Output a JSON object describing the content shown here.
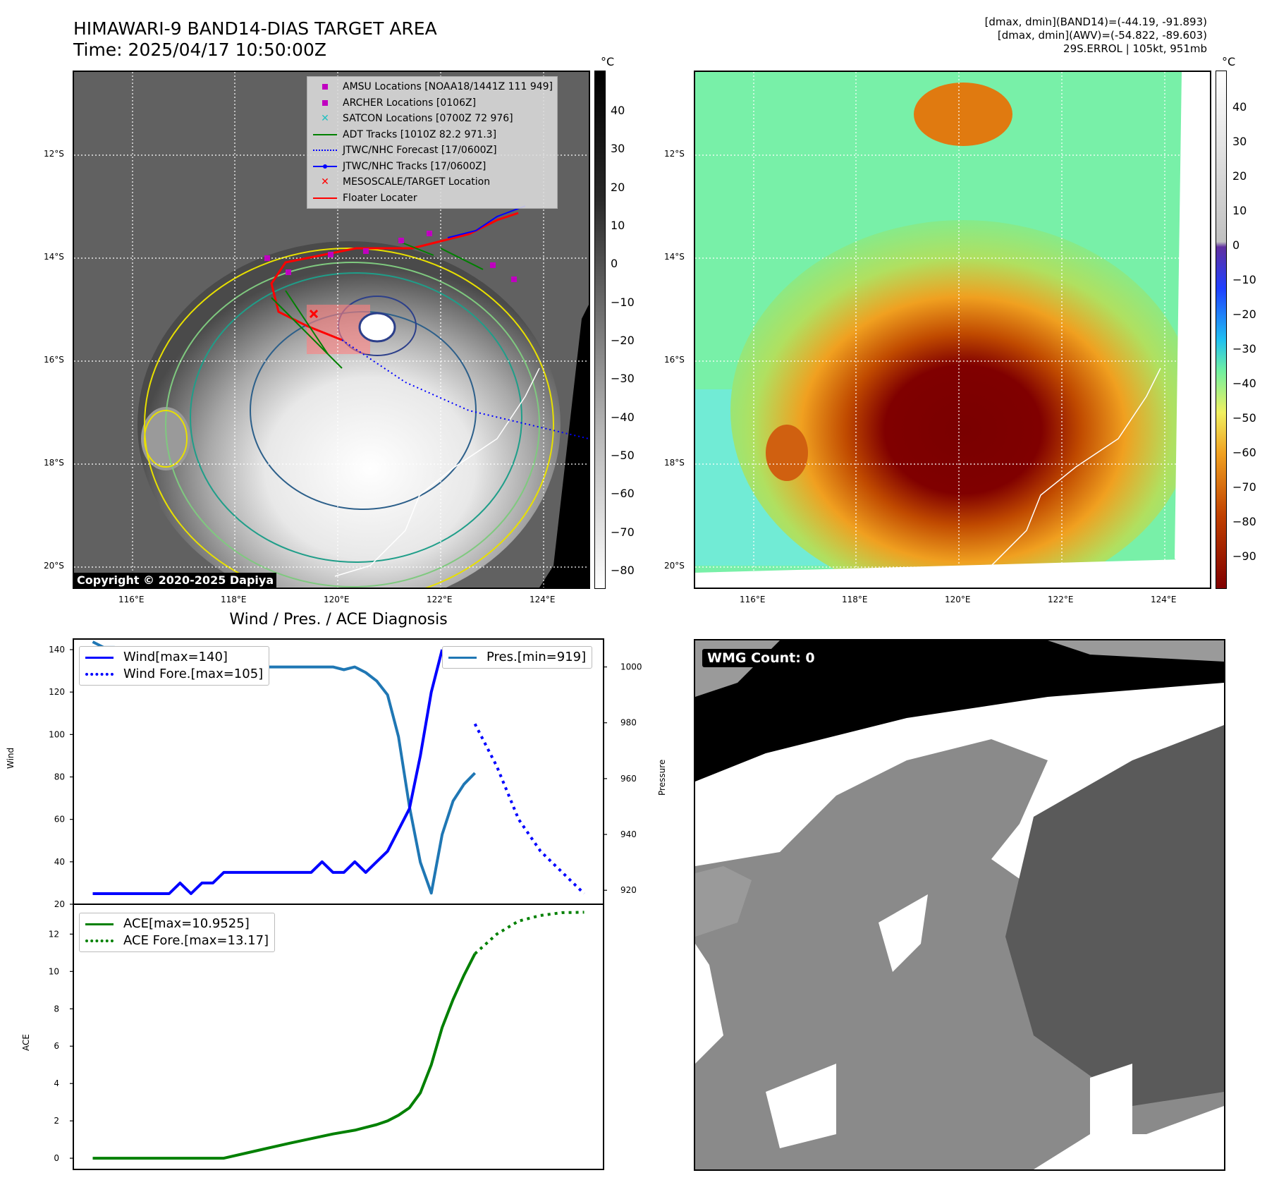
{
  "header": {
    "title_line1": "HIMAWARI-9 BAND14-DIAS TARGET AREA",
    "title_line2": "Time: 2025/04/17 10:50:00Z",
    "info_line1": "[dmax, dmin](BAND14)=(-44.19, -91.893)",
    "info_line2": "[dmax, dmin](AWV)=(-54.822, -89.603)",
    "info_line3": "29S.ERROL | 105kt, 951mb"
  },
  "map": {
    "lat_labels": [
      "12°S",
      "14°S",
      "16°S",
      "18°S",
      "20°S"
    ],
    "lon_labels": [
      "116°E",
      "118°E",
      "120°E",
      "122°E",
      "124°E"
    ],
    "copyright": "Copyright © 2020-2025 Dapiya",
    "legend": [
      {
        "label": "AMSU Locations [NOAA18/1441Z 111 949]",
        "symbol": "square",
        "color": "#c000c0"
      },
      {
        "label": "ARCHER Locations [0106Z]",
        "symbol": "square",
        "color": "#c000c0"
      },
      {
        "label": "SATCON Locations [0700Z 72 976]",
        "symbol": "x",
        "color": "#20c0c0"
      },
      {
        "label": "ADT Tracks [1010Z 82.2 971.3]",
        "symbol": "line",
        "color": "#008000"
      },
      {
        "label": "JTWC/NHC Forecast [17/0600Z]",
        "symbol": "dotted",
        "color": "#0000ff"
      },
      {
        "label": "JTWC/NHC Tracks [17/0600Z]",
        "symbol": "line-dot",
        "color": "#0000ff"
      },
      {
        "label": "MESOSCALE/TARGET Location",
        "symbol": "x",
        "color": "#ff0000"
      },
      {
        "label": "Floater Locater",
        "symbol": "line",
        "color": "#ff0000"
      }
    ]
  },
  "colorbar_gray": {
    "unit": "°C",
    "ticks": [
      "40",
      "30",
      "20",
      "10",
      "0",
      "−10",
      "−20",
      "−30",
      "−40",
      "−50",
      "−60",
      "−70",
      "−80"
    ]
  },
  "colorbar_color": {
    "unit": "°C",
    "ticks": [
      "40",
      "30",
      "20",
      "10",
      "0",
      "−10",
      "−20",
      "−30",
      "−40",
      "−50",
      "−60",
      "−70",
      "−80",
      "−90"
    ]
  },
  "diagnosis": {
    "title": "Wind / Pres. / ACE Diagnosis",
    "wind_ylabel": "Wind",
    "pres_ylabel": "Pressure",
    "ace_ylabel": "ACE",
    "wind_ticks": [
      "140",
      "120",
      "100",
      "80",
      "60",
      "40",
      "20"
    ],
    "pres_ticks": [
      "1000",
      "980",
      "960",
      "940",
      "920"
    ],
    "ace_ticks": [
      "12",
      "10",
      "8",
      "6",
      "4",
      "2",
      "0"
    ],
    "legend_wind": "Wind[max=140]",
    "legend_wind_fore": "Wind Fore.[max=105]",
    "legend_pres": "Pres.[min=919]",
    "legend_ace": "ACE[max=10.9525]",
    "legend_ace_fore": "ACE Fore.[max=13.17]"
  },
  "chart_data": [
    {
      "type": "line",
      "title": "Wind / Pres. / ACE Diagnosis",
      "ylabel": "Wind",
      "ylim": [
        20,
        145
      ],
      "series": [
        {
          "name": "Wind[max=140]",
          "color": "#0000ff",
          "style": "solid",
          "x": [
            0,
            1,
            2,
            3,
            4,
            5,
            6,
            7,
            8,
            9,
            10,
            11,
            12,
            13,
            14,
            15,
            16,
            17,
            18,
            19,
            20,
            21,
            22,
            23,
            24,
            25,
            26,
            27,
            28,
            29,
            30,
            31,
            32
          ],
          "values": [
            25,
            25,
            25,
            25,
            25,
            25,
            25,
            25,
            30,
            25,
            30,
            30,
            35,
            35,
            35,
            35,
            35,
            35,
            35,
            35,
            35,
            40,
            35,
            35,
            40,
            35,
            40,
            45,
            55,
            65,
            90,
            120,
            140
          ]
        },
        {
          "name": "Wind Fore.[max=105]",
          "color": "#0000ff",
          "style": "dotted",
          "x": [
            35,
            37,
            39,
            41,
            43,
            45
          ],
          "values": [
            105,
            85,
            60,
            45,
            35,
            25
          ]
        }
      ]
    },
    {
      "type": "line",
      "ylabel": "Pressure",
      "ylim": [
        915,
        1010
      ],
      "series": [
        {
          "name": "Pres.[min=919]",
          "color": "#1f77b4",
          "style": "solid",
          "x": [
            0,
            1,
            2,
            3,
            4,
            5,
            6,
            7,
            8,
            9,
            10,
            11,
            12,
            13,
            14,
            15,
            16,
            17,
            18,
            19,
            20,
            21,
            22,
            23,
            24,
            25,
            26,
            27,
            28,
            29,
            30,
            31,
            32,
            33,
            34,
            35
          ],
          "values": [
            1009,
            1007,
            1007,
            1006,
            1005,
            1004,
            1001,
            1000,
            999,
            1000,
            999,
            1000,
            1000,
            1000,
            1000,
            1000,
            1000,
            1000,
            1000,
            1000,
            1000,
            1000,
            1000,
            999,
            1000,
            998,
            995,
            990,
            975,
            950,
            930,
            919,
            940,
            952,
            958,
            962
          ]
        }
      ]
    },
    {
      "type": "line",
      "ylabel": "ACE",
      "ylim": [
        0,
        13.5
      ],
      "series": [
        {
          "name": "ACE[max=10.9525]",
          "color": "#008000",
          "style": "solid",
          "x": [
            0,
            12,
            15,
            18,
            20,
            22,
            24,
            25,
            26,
            27,
            28,
            29,
            30,
            31,
            32,
            33,
            34,
            35
          ],
          "values": [
            0,
            0,
            0.4,
            0.8,
            1.05,
            1.3,
            1.5,
            1.65,
            1.8,
            2.0,
            2.3,
            2.7,
            3.5,
            5.0,
            7.0,
            8.5,
            9.8,
            10.95
          ]
        },
        {
          "name": "ACE Fore.[max=13.17]",
          "color": "#008000",
          "style": "dotted",
          "x": [
            35,
            37,
            39,
            41,
            43,
            45
          ],
          "values": [
            10.95,
            12.0,
            12.7,
            13.0,
            13.15,
            13.17
          ]
        }
      ]
    }
  ],
  "wmg": {
    "label": "WMG Count: 0"
  }
}
